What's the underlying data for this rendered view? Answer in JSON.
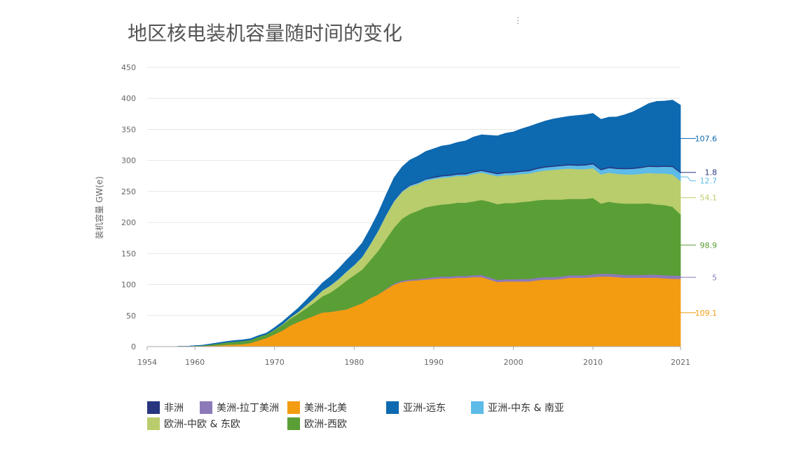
{
  "chart_data": {
    "type": "area",
    "stacked": true,
    "title": "地区核电装机容量随时间的变化",
    "ylabel": "装机容量 GW(e)",
    "xlabel": "",
    "ylim": [
      0,
      450
    ],
    "yticks": [
      0,
      50,
      100,
      150,
      200,
      250,
      300,
      350,
      400,
      450
    ],
    "xticks": [
      1954,
      1960,
      1970,
      1980,
      1990,
      2000,
      2010,
      2021
    ],
    "grid": true,
    "legend_position": "bottom",
    "years": [
      1954,
      1955,
      1956,
      1957,
      1958,
      1959,
      1960,
      1961,
      1962,
      1963,
      1964,
      1965,
      1966,
      1967,
      1968,
      1969,
      1970,
      1971,
      1972,
      1973,
      1974,
      1975,
      1976,
      1977,
      1978,
      1979,
      1980,
      1981,
      1982,
      1983,
      1984,
      1985,
      1986,
      1987,
      1988,
      1989,
      1990,
      1991,
      1992,
      1993,
      1994,
      1995,
      1996,
      1997,
      1998,
      1999,
      2000,
      2001,
      2002,
      2003,
      2004,
      2005,
      2006,
      2007,
      2008,
      2009,
      2010,
      2011,
      2012,
      2013,
      2014,
      2015,
      2016,
      2017,
      2018,
      2019,
      2020,
      2021
    ],
    "series": [
      {
        "name": "美洲-北美",
        "color": "#f39c12",
        "values": [
          0,
          0,
          0,
          0,
          0,
          0,
          0.5,
          1,
          1.5,
          2,
          3,
          3.5,
          4,
          6,
          10,
          14,
          20,
          26,
          34,
          40,
          45,
          50,
          55,
          56,
          58,
          60,
          65,
          70,
          78,
          84,
          92,
          100,
          104,
          106,
          107,
          108,
          109,
          110,
          110,
          111,
          111,
          112,
          112,
          108,
          104,
          105,
          105,
          105,
          105,
          107,
          108,
          108,
          109,
          111,
          111,
          111,
          112,
          113,
          113,
          112,
          111,
          111,
          111,
          111,
          111,
          110,
          109.5,
          109.1
        ]
      },
      {
        "name": "美洲-拉丁美洲",
        "color": "#8c7ab8",
        "values": [
          0,
          0,
          0,
          0,
          0,
          0,
          0,
          0,
          0,
          0,
          0,
          0,
          0,
          0,
          0,
          0,
          0,
          0,
          0,
          0,
          0,
          0,
          0,
          0,
          0,
          0,
          0,
          0,
          0,
          0,
          1,
          1.5,
          2,
          2,
          2,
          2.5,
          3,
          3,
          3,
          3,
          3,
          3,
          3.5,
          3.5,
          3.5,
          3.5,
          3.5,
          4,
          4,
          4,
          4,
          4,
          4,
          4,
          4,
          4,
          4.5,
          4.5,
          4.5,
          4.5,
          4.5,
          4.5,
          4.5,
          5,
          5,
          5,
          5,
          5
        ]
      },
      {
        "name": "欧洲-西欧",
        "color": "#5a9e36",
        "values": [
          0,
          0,
          0,
          0,
          0.5,
          0.5,
          1,
          1,
          2,
          3,
          4,
          4.5,
          5,
          5,
          6,
          6,
          7,
          9,
          11,
          13,
          17,
          21,
          26,
          31,
          38,
          46,
          50,
          54,
          61,
          70,
          80,
          90,
          100,
          106,
          110,
          114,
          115,
          116,
          117,
          118,
          118,
          119,
          121,
          122,
          122,
          123,
          123,
          124,
          125,
          125,
          125,
          125,
          124,
          123,
          123,
          123,
          123,
          113,
          116,
          115,
          115,
          115,
          115,
          115,
          113,
          113,
          111,
          98.9
        ]
      },
      {
        "name": "欧洲-中欧 & 东欧",
        "color": "#b9cd6d",
        "values": [
          0,
          0,
          0,
          0,
          0,
          0,
          0,
          0,
          0,
          0,
          0,
          0,
          0,
          0,
          0,
          0,
          0.5,
          1,
          2,
          3,
          5,
          7,
          9,
          11,
          12,
          14,
          16,
          20,
          25,
          32,
          38,
          42,
          43,
          44,
          43,
          43,
          43,
          43,
          43,
          43,
          43,
          44,
          44,
          44,
          45,
          45,
          45,
          45,
          45,
          46,
          47,
          48,
          49,
          49,
          48,
          48,
          48,
          47,
          47,
          47,
          47,
          47,
          48,
          49,
          50,
          51,
          52,
          54.1
        ]
      },
      {
        "name": "亚洲-中东 & 南亚",
        "color": "#5dbbe8",
        "values": [
          0,
          0,
          0,
          0,
          0,
          0,
          0,
          0,
          0,
          0,
          0,
          0,
          0,
          0,
          0,
          0,
          0.1,
          0.2,
          0.3,
          0.4,
          0.5,
          0.6,
          0.7,
          0.8,
          1,
          1,
          1,
          1,
          1,
          1,
          1.2,
          1.5,
          1.5,
          1.8,
          2,
          2,
          2.2,
          2.5,
          2.5,
          2.5,
          2.8,
          3,
          3,
          3.2,
          3.5,
          3.5,
          3.8,
          4,
          4,
          4.5,
          4.8,
          5,
          5.2,
          5.4,
          5.6,
          6,
          6.5,
          7,
          7.5,
          8,
          8.5,
          9,
          9.5,
          10,
          10.5,
          11,
          12,
          12.7
        ]
      },
      {
        "name": "非洲",
        "color": "#27367f",
        "values": [
          0,
          0,
          0,
          0,
          0,
          0,
          0,
          0,
          0,
          0,
          0,
          0,
          0,
          0,
          0,
          0,
          0,
          0,
          0,
          0,
          0,
          0,
          0,
          0,
          0,
          0,
          0,
          0,
          0,
          0,
          0,
          1,
          1,
          1,
          1,
          1,
          1.8,
          1.8,
          1.8,
          1.8,
          1.8,
          1.8,
          1.8,
          1.8,
          1.8,
          1.8,
          1.8,
          1.8,
          1.8,
          1.8,
          1.8,
          1.8,
          1.8,
          1.8,
          1.8,
          1.8,
          1.8,
          1.8,
          1.8,
          1.8,
          1.8,
          1.8,
          1.8,
          1.8,
          1.8,
          1.8,
          1.8,
          1.8
        ]
      },
      {
        "name": "亚洲-远东",
        "color": "#0d69b0",
        "values": [
          0,
          0,
          0,
          0,
          0,
          0,
          0,
          0.5,
          1,
          1.5,
          1.5,
          2,
          2,
          2,
          2,
          2,
          3,
          4,
          4,
          6,
          8,
          10,
          12,
          14,
          16,
          18,
          20,
          22,
          25,
          28,
          32,
          36,
          38,
          40,
          42,
          44,
          45,
          47,
          48,
          50,
          52,
          55,
          56,
          58,
          60,
          62,
          64,
          67,
          70,
          71,
          73,
          75,
          76,
          77,
          79,
          80,
          80,
          80,
          80,
          82,
          86,
          90,
          95,
          100,
          104,
          104,
          106,
          107.6
        ]
      }
    ],
    "end_labels": [
      {
        "series": "亚洲-远东",
        "text": "107.6"
      },
      {
        "series": "亚洲-中东 & 南亚",
        "text": "12.7"
      },
      {
        "series": "非洲",
        "text": "1.8"
      },
      {
        "series": "欧洲-中欧 & 东欧",
        "text": "54.1"
      },
      {
        "series": "欧洲-西欧",
        "text": "98.9"
      },
      {
        "series": "美洲-拉丁美洲",
        "text": "5"
      },
      {
        "series": "美洲-北美",
        "text": "109.1"
      }
    ]
  },
  "top_marker": "⋮",
  "legend": [
    {
      "label": "非洲",
      "color": "#27367f"
    },
    {
      "label": "美洲-拉丁美洲",
      "color": "#8c7ab8"
    },
    {
      "label": "美洲-北美",
      "color": "#f39c12"
    },
    {
      "label": "亚洲-远东",
      "color": "#0d69b0"
    },
    {
      "label": "亚洲-中东 & 南亚",
      "color": "#5dbbe8"
    },
    {
      "label": "欧洲-中欧 & 东欧",
      "color": "#b9cd6d"
    },
    {
      "label": "欧洲-西欧",
      "color": "#5a9e36"
    }
  ]
}
